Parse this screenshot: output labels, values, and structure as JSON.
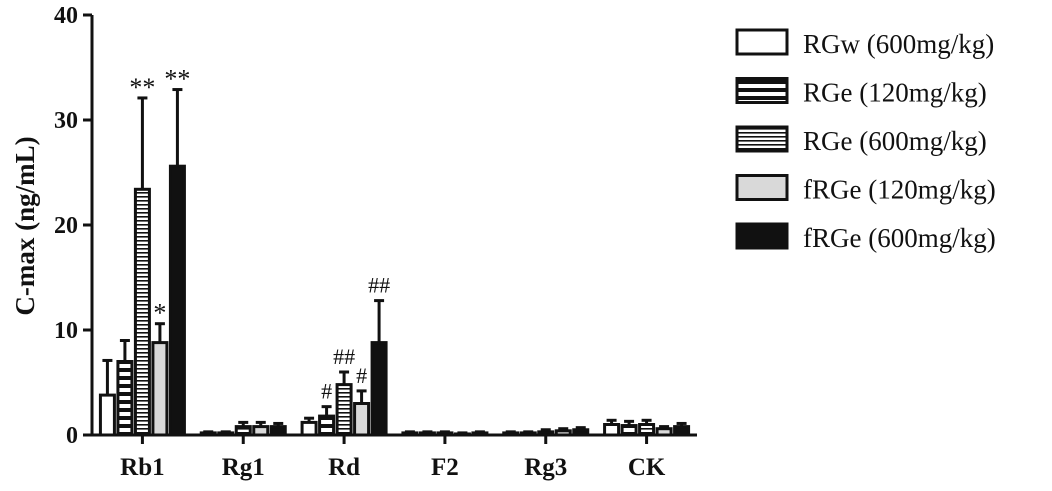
{
  "chart_data": {
    "type": "bar",
    "title": "",
    "xlabel": "",
    "ylabel": "C-max (ng/mL)",
    "ylim": [
      0,
      40
    ],
    "yticks": [
      0,
      10,
      20,
      30,
      40
    ],
    "categories": [
      "Rb1",
      "Rg1",
      "Rd",
      "F2",
      "Rg3",
      "CK"
    ],
    "legend_position": "top-right",
    "series": [
      {
        "name": "RGw (600mg/kg)",
        "pattern": "hollow",
        "values": [
          3.8,
          0.2,
          1.2,
          0.2,
          0.2,
          1.0
        ],
        "errors": [
          3.3,
          0.1,
          0.4,
          0.1,
          0.1,
          0.4
        ]
      },
      {
        "name": "RGe (120mg/kg)",
        "pattern": "h-stripes",
        "values": [
          7.0,
          0.2,
          1.8,
          0.2,
          0.2,
          0.9
        ],
        "errors": [
          2.0,
          0.1,
          0.9,
          0.1,
          0.1,
          0.4
        ]
      },
      {
        "name": "RGe (600mg/kg)",
        "pattern": "fine-stripes",
        "values": [
          23.4,
          0.8,
          4.8,
          0.2,
          0.3,
          1.0
        ],
        "errors": [
          8.7,
          0.4,
          1.2,
          0.1,
          0.2,
          0.4
        ]
      },
      {
        "name": "fRGe (120mg/kg)",
        "pattern": "light-gray",
        "values": [
          8.8,
          0.8,
          3.0,
          0.1,
          0.4,
          0.6
        ],
        "errors": [
          1.8,
          0.4,
          1.2,
          0.1,
          0.2,
          0.2
        ]
      },
      {
        "name": "fRGe (600mg/kg)",
        "pattern": "solid-black",
        "values": [
          25.6,
          0.8,
          8.8,
          0.2,
          0.5,
          0.8
        ],
        "errors": [
          7.3,
          0.3,
          4.0,
          0.1,
          0.2,
          0.3
        ]
      }
    ],
    "annotations": [
      {
        "category": 0,
        "series": 2,
        "text": "**"
      },
      {
        "category": 0,
        "series": 3,
        "text": "*"
      },
      {
        "category": 0,
        "series": 4,
        "text": "**"
      },
      {
        "category": 2,
        "series": 1,
        "text": "#"
      },
      {
        "category": 2,
        "series": 2,
        "text": "##"
      },
      {
        "category": 2,
        "series": 3,
        "text": "#"
      },
      {
        "category": 2,
        "series": 4,
        "text": "##"
      }
    ]
  }
}
